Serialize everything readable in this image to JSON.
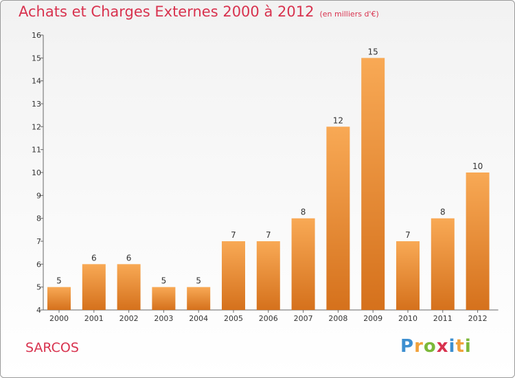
{
  "header": {
    "title": "Achats et Charges Externes 2000 à 2012",
    "unit": "(en milliers d'€)"
  },
  "footer": {
    "commune": "SARCOS",
    "brand_letters": [
      "P",
      "r",
      "o",
      "x",
      "i",
      "t",
      "i"
    ]
  },
  "chart_data": {
    "type": "bar",
    "title": "Achats et Charges Externes 2000 à 2012",
    "xlabel": "",
    "ylabel": "",
    "categories": [
      "2000",
      "2001",
      "2002",
      "2003",
      "2004",
      "2005",
      "2006",
      "2007",
      "2008",
      "2009",
      "2010",
      "2011",
      "2012"
    ],
    "values": [
      5,
      6,
      6,
      5,
      5,
      7,
      7,
      8,
      12,
      15,
      7,
      8,
      10
    ],
    "ylim": [
      4,
      16
    ],
    "yticks": [
      4,
      5,
      6,
      7,
      8,
      9,
      10,
      11,
      12,
      13,
      14,
      15,
      16
    ],
    "grid": false,
    "legend": "none",
    "colors": {
      "bar_top": "#f8a955",
      "bar_bottom": "#d5711c",
      "axis": "#666666",
      "label": "#333333"
    }
  }
}
